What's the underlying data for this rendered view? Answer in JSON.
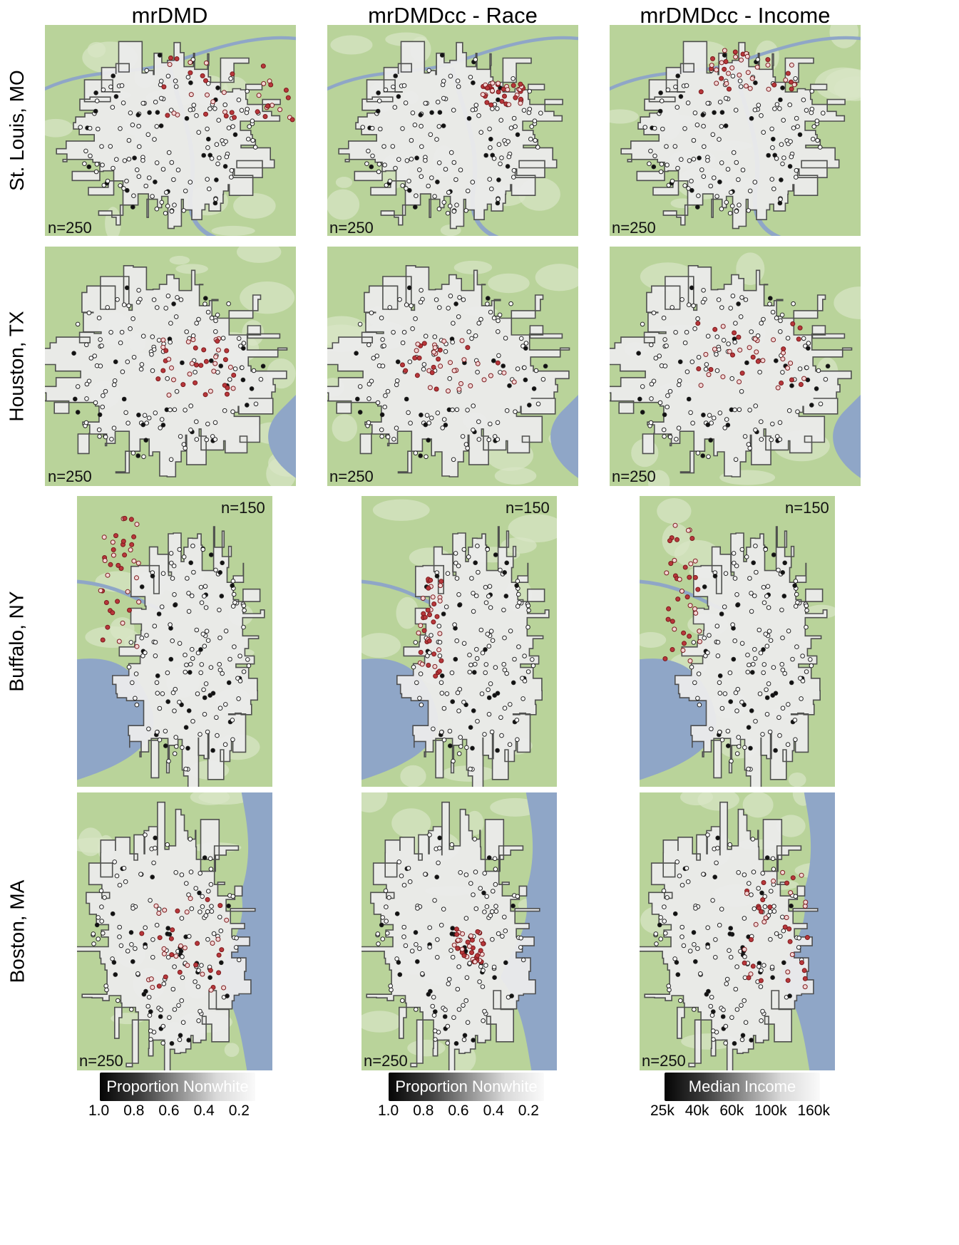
{
  "columns": [
    "mrDMD",
    "mrDMDcc - Race",
    "mrDMDcc - Income"
  ],
  "rows": [
    "St. Louis, MO",
    "Houston, TX",
    "Buffalo, NY",
    "Boston, MA"
  ],
  "counts": [
    [
      "n=250",
      "n=250",
      "n=250"
    ],
    [
      "n=250",
      "n=250",
      "n=250"
    ],
    [
      "n=150",
      "n=150",
      "n=150"
    ],
    [
      "n=250",
      "n=250",
      "n=250"
    ]
  ],
  "legends": [
    {
      "title": "Proportion Nonwhite",
      "ticks": [
        "1.0",
        "0.8",
        "0.6",
        "0.4",
        "0.2"
      ]
    },
    {
      "title": "Proportion Nonwhite",
      "ticks": [
        "1.0",
        "0.8",
        "0.6",
        "0.4",
        "0.2"
      ]
    },
    {
      "title": "Median Income",
      "ticks": [
        "25k",
        "40k",
        "60k",
        "100k",
        "160k"
      ]
    }
  ],
  "colors": {
    "land_green": "#b9d39a",
    "urban_gray": "#ececec",
    "water_blue": "#8fa6c7",
    "highlight_red": "#b8373b",
    "boundary": "#4a4a4a"
  }
}
